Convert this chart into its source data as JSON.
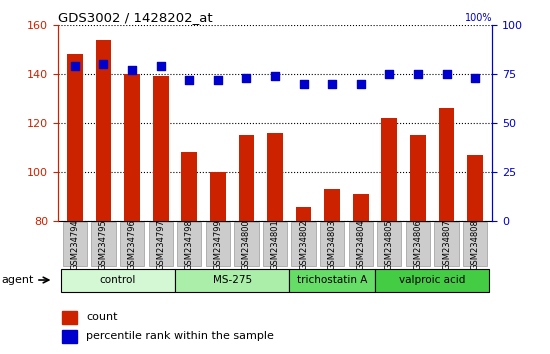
{
  "title": "GDS3002 / 1428202_at",
  "samples": [
    "GSM234794",
    "GSM234795",
    "GSM234796",
    "GSM234797",
    "GSM234798",
    "GSM234799",
    "GSM234800",
    "GSM234801",
    "GSM234802",
    "GSM234803",
    "GSM234804",
    "GSM234805",
    "GSM234806",
    "GSM234807",
    "GSM234808"
  ],
  "counts": [
    148,
    154,
    140,
    139,
    108,
    100,
    115,
    116,
    86,
    93,
    91,
    122,
    115,
    126,
    107
  ],
  "percentile": [
    79,
    80,
    77,
    79,
    72,
    72,
    73,
    74,
    70,
    70,
    70,
    75,
    75,
    75,
    73
  ],
  "bar_color": "#cc2200",
  "dot_color": "#0000cc",
  "ylim_left": [
    80,
    160
  ],
  "ylim_right": [
    0,
    100
  ],
  "yticks_left": [
    80,
    100,
    120,
    140,
    160
  ],
  "yticks_right": [
    0,
    25,
    50,
    75,
    100
  ],
  "groups": [
    {
      "label": "control",
      "start": 0,
      "end": 4,
      "color": "#d4f7d4"
    },
    {
      "label": "MS-275",
      "start": 4,
      "end": 8,
      "color": "#aaeeaa"
    },
    {
      "label": "trichostatin A",
      "start": 8,
      "end": 11,
      "color": "#66dd66"
    },
    {
      "label": "valproic acid",
      "start": 11,
      "end": 15,
      "color": "#44cc44"
    }
  ],
  "agent_label": "agent",
  "legend_count_label": "count",
  "legend_pct_label": "percentile rank within the sample",
  "left_axis_color": "#cc2200",
  "right_axis_color": "#0000cc",
  "tick_bg_color": "#c8c8c8",
  "spine_color": "#000000"
}
